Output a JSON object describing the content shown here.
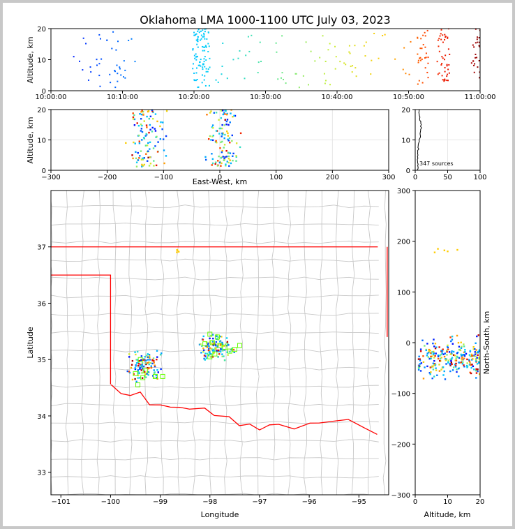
{
  "title": "Oklahoma LMA 1000-1100 UTC July 03, 2023",
  "source_count_label": "347 sources",
  "colors": {
    "early": "#0000ff",
    "mid": "#00ccff",
    "late": "#ff0000",
    "last": "#8b0000",
    "border": "#ff0000",
    "county": "#c8c8c8",
    "station": "#66ff00"
  },
  "chart_data": [
    {
      "type": "scatter",
      "panel": "altitude-vs-time",
      "title": "Oklahoma LMA 1000-1100 UTC July 03, 2023",
      "xlabel": "",
      "ylabel": "Altitude, km",
      "xlim": [
        "10:00:00",
        "11:00:00"
      ],
      "ylim": [
        0,
        20
      ],
      "xticks": [
        "10:00:00",
        "10:10:00",
        "10:20:00",
        "10:30:00",
        "10:40:00",
        "10:50:00",
        "11:00:00"
      ],
      "yticks": [
        "0",
        "10",
        "20"
      ],
      "color_encoding": "time"
    },
    {
      "type": "scatter",
      "panel": "altitude-vs-east-west",
      "xlabel": "East-West, km",
      "ylabel": "Altitude, km",
      "xlim": [
        -300,
        300
      ],
      "ylim": [
        0,
        20
      ],
      "xticks": [
        "−300",
        "−200",
        "−100",
        "0",
        "100",
        "200",
        "300"
      ],
      "yticks": [
        "0",
        "10",
        "20"
      ]
    },
    {
      "type": "histogram",
      "panel": "altitude-histogram",
      "xlim": [
        0,
        100
      ],
      "ylim": [
        0,
        20
      ],
      "xticks": [
        "0",
        "50",
        "100"
      ],
      "yticks": [
        "0",
        "10",
        "20"
      ],
      "annotation": "347 sources"
    },
    {
      "type": "map",
      "panel": "plan-view",
      "xlabel": "Longitude",
      "ylabel": "Latitude",
      "xlim": [
        -101.2,
        -94.4
      ],
      "ylim": [
        32.6,
        38.0
      ],
      "xticks": [
        "−101",
        "−100",
        "−99",
        "−98",
        "−97",
        "−96",
        "−95"
      ],
      "yticks": [
        "33",
        "34",
        "35",
        "36",
        "37"
      ]
    },
    {
      "type": "scatter",
      "panel": "north-south-vs-altitude",
      "xlabel": "Altitude, km",
      "ylabel": "North-South, km",
      "xlim": [
        0,
        20
      ],
      "ylim": [
        -300,
        300
      ],
      "xticks": [
        "0",
        "10",
        "20"
      ],
      "yticks": [
        "−300",
        "−200",
        "−100",
        "0",
        "100",
        "200",
        "300"
      ]
    }
  ]
}
